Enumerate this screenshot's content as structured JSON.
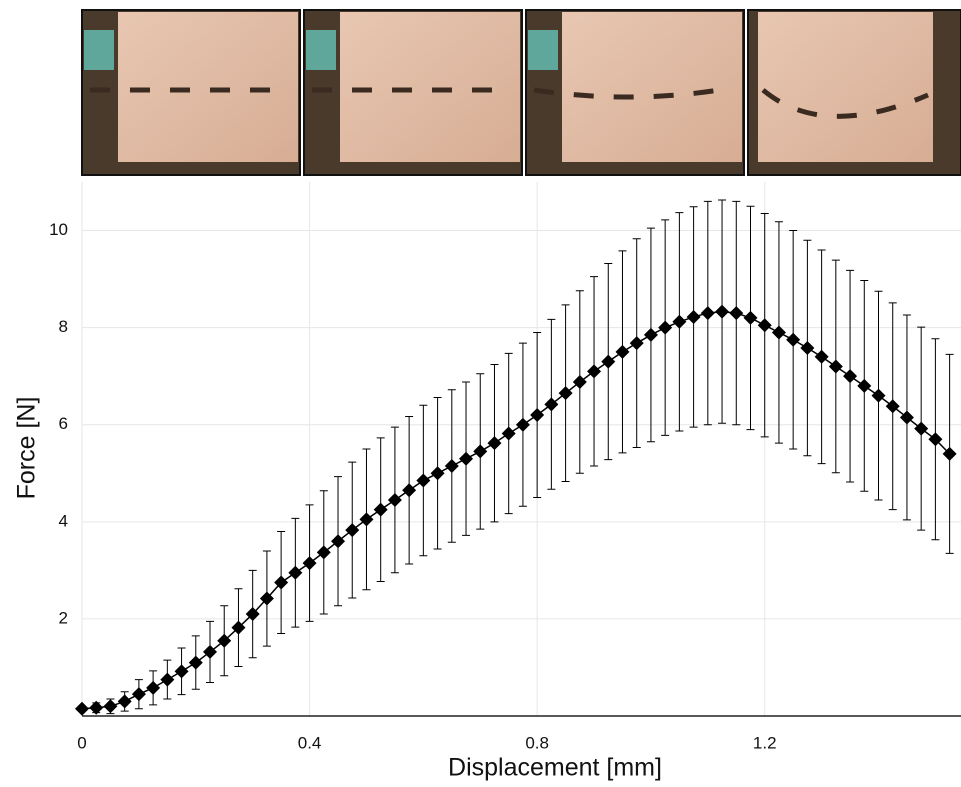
{
  "chart_data": {
    "type": "scatter",
    "x_label": "Displacement [mm]",
    "y_label": "Force [N]",
    "xlim": [
      0,
      1.545
    ],
    "ylim": [
      0,
      11
    ],
    "xticks": [
      0,
      0.4,
      0.8,
      1.2
    ],
    "yticks": [
      2,
      4,
      6,
      8,
      10
    ],
    "grid": true,
    "color": "#000000",
    "x": [
      0,
      0.025,
      0.05,
      0.075,
      0.1,
      0.125,
      0.15,
      0.175,
      0.2,
      0.225,
      0.25,
      0.275,
      0.3,
      0.325,
      0.35,
      0.375,
      0.4,
      0.425,
      0.45,
      0.475,
      0.5,
      0.525,
      0.55,
      0.575,
      0.6,
      0.625,
      0.65,
      0.675,
      0.7,
      0.725,
      0.75,
      0.775,
      0.8,
      0.825,
      0.85,
      0.875,
      0.9,
      0.925,
      0.95,
      0.975,
      1.0,
      1.025,
      1.05,
      1.075,
      1.1,
      1.125,
      1.15,
      1.175,
      1.2,
      1.225,
      1.25,
      1.275,
      1.3,
      1.325,
      1.35,
      1.375,
      1.4,
      1.425,
      1.45,
      1.475,
      1.5,
      1.525
    ],
    "values": [
      0.15,
      0.17,
      0.2,
      0.3,
      0.45,
      0.58,
      0.75,
      0.92,
      1.1,
      1.32,
      1.55,
      1.82,
      2.1,
      2.42,
      2.75,
      2.95,
      3.15,
      3.37,
      3.6,
      3.83,
      4.05,
      4.25,
      4.45,
      4.65,
      4.85,
      5.0,
      5.15,
      5.3,
      5.45,
      5.62,
      5.82,
      6.0,
      6.2,
      6.42,
      6.65,
      6.88,
      7.1,
      7.3,
      7.5,
      7.68,
      7.85,
      8.0,
      8.12,
      8.22,
      8.3,
      8.33,
      8.3,
      8.2,
      8.05,
      7.9,
      7.75,
      7.58,
      7.4,
      7.2,
      7.0,
      6.8,
      6.6,
      6.38,
      6.15,
      5.92,
      5.7,
      5.4
    ],
    "errors": [
      0.05,
      0.1,
      0.15,
      0.2,
      0.3,
      0.35,
      0.4,
      0.48,
      0.55,
      0.63,
      0.72,
      0.8,
      0.9,
      0.98,
      1.05,
      1.12,
      1.2,
      1.27,
      1.33,
      1.4,
      1.45,
      1.48,
      1.5,
      1.52,
      1.55,
      1.56,
      1.57,
      1.58,
      1.6,
      1.62,
      1.65,
      1.68,
      1.7,
      1.75,
      1.82,
      1.88,
      1.95,
      2.02,
      2.08,
      2.15,
      2.2,
      2.22,
      2.25,
      2.27,
      2.3,
      2.3,
      2.3,
      2.3,
      2.3,
      2.28,
      2.25,
      2.22,
      2.2,
      2.19,
      2.18,
      2.17,
      2.15,
      2.13,
      2.11,
      2.09,
      2.07,
      2.05
    ]
  }
}
